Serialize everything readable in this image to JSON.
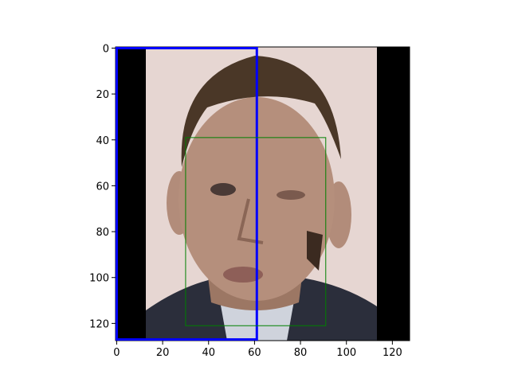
{
  "chart_data": {
    "type": "image",
    "xlim": [
      -0.5,
      127.5
    ],
    "ylim": [
      127.5,
      -0.5
    ],
    "xticks": [
      0,
      20,
      40,
      60,
      80,
      100,
      120
    ],
    "yticks": [
      0,
      20,
      40,
      60,
      80,
      100,
      120
    ],
    "boxes": [
      {
        "color": "#0000ff",
        "linewidth": 3,
        "x0": 0,
        "y0": 0,
        "x1": 61,
        "y1": 127
      },
      {
        "color": "#008000",
        "linewidth": 1,
        "x0": 30,
        "y0": 39,
        "x1": 91,
        "y1": 121
      }
    ]
  }
}
